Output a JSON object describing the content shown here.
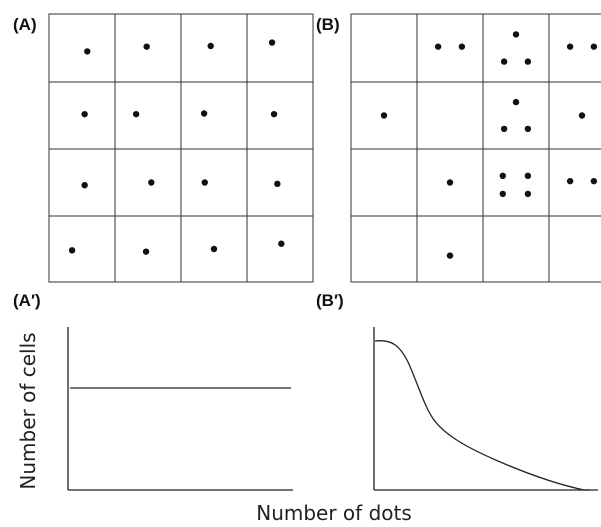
{
  "panels": {
    "a": {
      "label": "(A)"
    },
    "b": {
      "label": "(B)"
    },
    "a_prime": {
      "label": "(A′)"
    },
    "b_prime": {
      "label": "(B′)"
    }
  },
  "axis": {
    "y_title": "Number of cells",
    "x_title": "Number of dots"
  },
  "grid_a": {
    "rows": 4,
    "cols": 4,
    "dots_per_cell": [
      [
        1,
        1,
        1,
        1
      ],
      [
        1,
        1,
        1,
        1
      ],
      [
        1,
        1,
        1,
        1
      ],
      [
        1,
        1,
        1,
        1
      ]
    ]
  },
  "grid_b": {
    "rows": 4,
    "cols": 4,
    "dots_per_cell": [
      [
        0,
        2,
        3,
        2
      ],
      [
        1,
        0,
        3,
        1
      ],
      [
        0,
        1,
        4,
        2
      ],
      [
        0,
        1,
        0,
        0
      ]
    ]
  },
  "chart_data": [
    {
      "type": "line",
      "panel": "(A′)",
      "xlabel": "Number of dots",
      "ylabel": "Number of cells",
      "shape": "flat horizontal line"
    },
    {
      "type": "line",
      "panel": "(B′)",
      "xlabel": "Number of dots",
      "ylabel": "Number of cells",
      "shape": "high plateau then steep sigmoid drop and long decaying tail"
    }
  ]
}
